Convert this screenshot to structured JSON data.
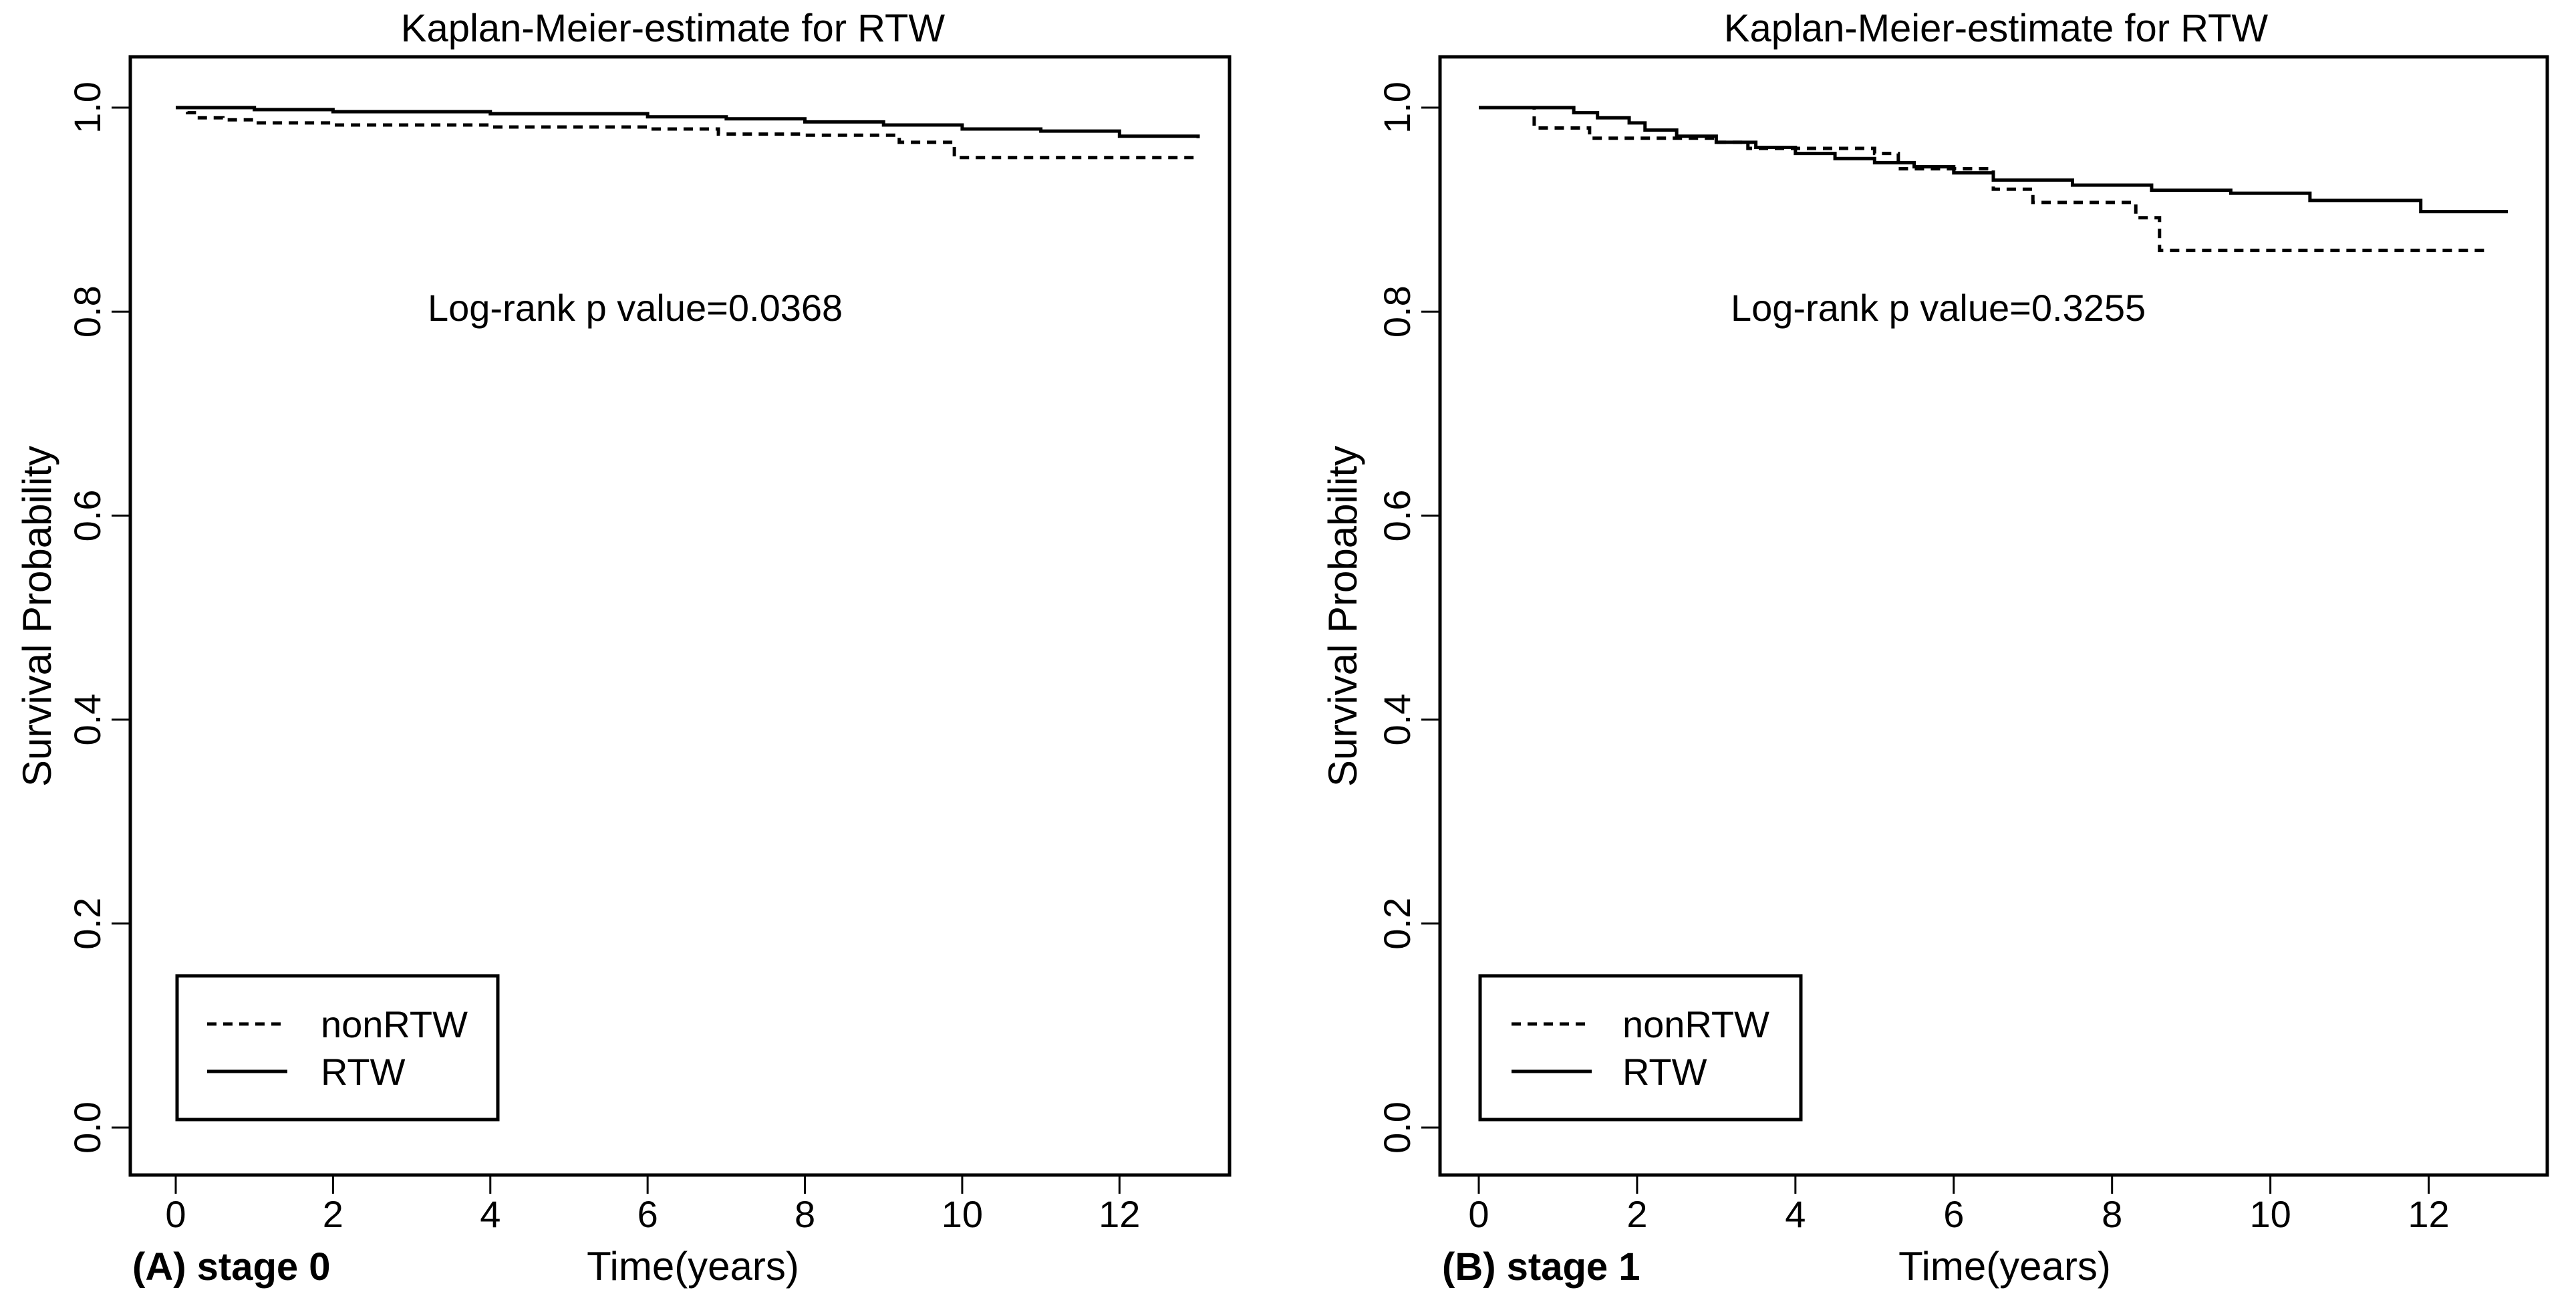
{
  "chart_data": [
    {
      "type": "line",
      "panel_label": "(A) stage 0",
      "title": "Kaplan-Meier-estimate for RTW",
      "xlabel": "Time(years)",
      "ylabel": "Survival Probability",
      "xlim": [
        0,
        13
      ],
      "ylim": [
        0,
        1
      ],
      "xticks": [
        "0",
        "2",
        "4",
        "6",
        "8",
        "10",
        "12"
      ],
      "yticks": [
        "0.0",
        "0.2",
        "0.4",
        "0.6",
        "0.8",
        "1.0"
      ],
      "annotation": "Log-rank  p value=0.0368",
      "legend_position": "bottom-left",
      "series": [
        {
          "name": "nonRTW",
          "style": "dashed",
          "steps": [
            [
              0,
              1.0
            ],
            [
              0.15,
              0.995
            ],
            [
              0.3,
              0.99
            ],
            [
              0.6,
              0.988
            ],
            [
              1.0,
              0.985
            ],
            [
              2.0,
              0.983
            ],
            [
              4.0,
              0.981
            ],
            [
              5.0,
              0.981
            ],
            [
              6.0,
              0.979
            ],
            [
              6.9,
              0.974
            ],
            [
              8.0,
              0.973
            ],
            [
              9.2,
              0.966
            ],
            [
              9.9,
              0.951
            ],
            [
              13.0,
              0.951
            ]
          ]
        },
        {
          "name": "RTW",
          "style": "solid",
          "steps": [
            [
              0,
              1.0
            ],
            [
              1.0,
              0.998
            ],
            [
              2.0,
              0.996
            ],
            [
              4.0,
              0.994
            ],
            [
              6.0,
              0.991
            ],
            [
              7.0,
              0.989
            ],
            [
              8.0,
              0.986
            ],
            [
              9.0,
              0.983
            ],
            [
              10.0,
              0.979
            ],
            [
              11.0,
              0.977
            ],
            [
              12.0,
              0.972
            ],
            [
              13.0,
              0.97
            ]
          ]
        }
      ]
    },
    {
      "type": "line",
      "panel_label": "(B) stage 1",
      "title": "Kaplan-Meier-estimate for RTW",
      "xlabel": "Time(years)",
      "ylabel": "Survival Probability",
      "xlim": [
        0,
        13
      ],
      "ylim": [
        0,
        1
      ],
      "xticks": [
        "0",
        "2",
        "4",
        "6",
        "8",
        "10",
        "12"
      ],
      "yticks": [
        "0.0",
        "0.2",
        "0.4",
        "0.6",
        "0.8",
        "1.0"
      ],
      "annotation": "Log-rank  p value=0.3255",
      "legend_position": "bottom-left",
      "series": [
        {
          "name": "nonRTW",
          "style": "dashed",
          "steps": [
            [
              0,
              1.0
            ],
            [
              0.7,
              0.98
            ],
            [
              1.4,
              0.97
            ],
            [
              3.0,
              0.966
            ],
            [
              3.4,
              0.96
            ],
            [
              5.0,
              0.955
            ],
            [
              5.3,
              0.94
            ],
            [
              6.5,
              0.92
            ],
            [
              7.0,
              0.907
            ],
            [
              8.3,
              0.892
            ],
            [
              8.6,
              0.86
            ],
            [
              12.7,
              0.86
            ]
          ]
        },
        {
          "name": "RTW",
          "style": "solid",
          "steps": [
            [
              0,
              1.0
            ],
            [
              1.2,
              0.995
            ],
            [
              1.5,
              0.99
            ],
            [
              1.9,
              0.985
            ],
            [
              2.1,
              0.978
            ],
            [
              2.5,
              0.972
            ],
            [
              3.0,
              0.966
            ],
            [
              3.5,
              0.961
            ],
            [
              4.0,
              0.955
            ],
            [
              4.5,
              0.95
            ],
            [
              5.0,
              0.946
            ],
            [
              5.5,
              0.942
            ],
            [
              6.0,
              0.936
            ],
            [
              6.5,
              0.929
            ],
            [
              7.5,
              0.924
            ],
            [
              8.5,
              0.919
            ],
            [
              9.5,
              0.916
            ],
            [
              10.5,
              0.909
            ],
            [
              11.9,
              0.898
            ],
            [
              13.0,
              0.898
            ]
          ]
        }
      ]
    }
  ]
}
